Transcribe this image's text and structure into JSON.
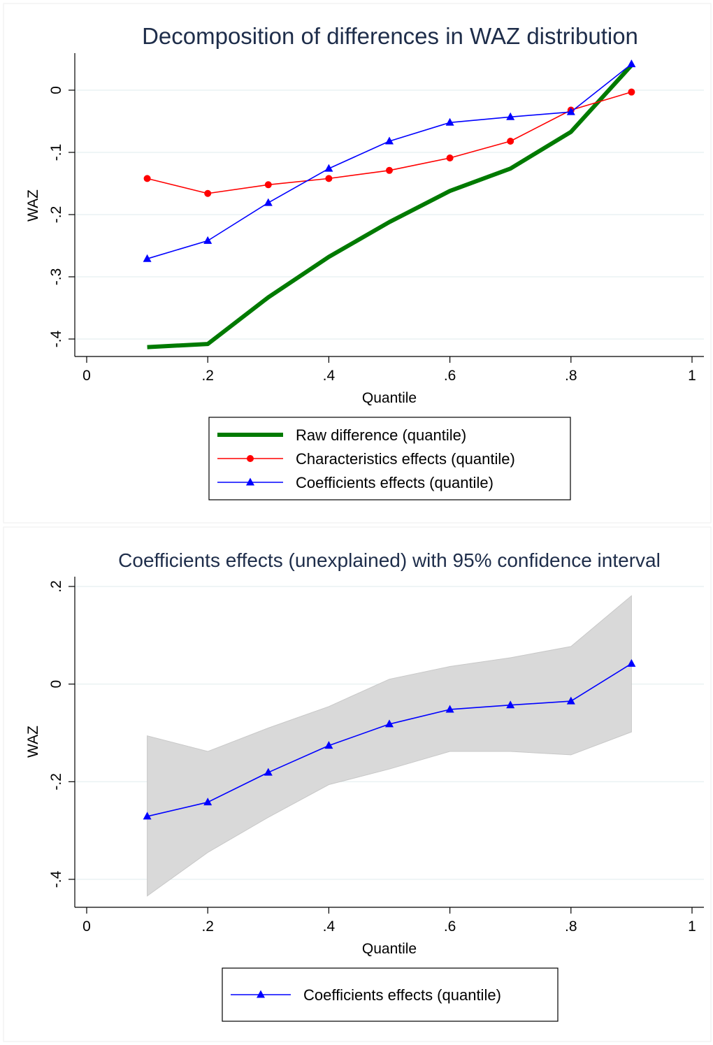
{
  "chart_data": [
    {
      "type": "line",
      "title": "Decomposition of differences in WAZ distribution",
      "xlabel": "Quantile",
      "ylabel": "WAZ",
      "xlim": [
        0,
        1
      ],
      "ylim": [
        -0.43,
        0.05
      ],
      "x_ticks": [
        0,
        0.2,
        0.4,
        0.6,
        0.8,
        1
      ],
      "x_tick_labels": [
        "0",
        ".2",
        ".4",
        ".6",
        ".8",
        "1"
      ],
      "y_ticks": [
        0,
        -0.1,
        -0.2,
        -0.3,
        -0.4
      ],
      "y_tick_labels": [
        "0",
        "-.1",
        "-.2",
        "-.3",
        "-.4"
      ],
      "grid": true,
      "legend_position": "bottom",
      "x": [
        0.1,
        0.2,
        0.3,
        0.4,
        0.5,
        0.6,
        0.7,
        0.8,
        0.9
      ],
      "series": [
        {
          "name": "Raw difference (quantile)",
          "color": "#007a00",
          "marker": "none",
          "values": [
            -0.413,
            -0.408,
            -0.333,
            -0.268,
            -0.212,
            -0.162,
            -0.126,
            -0.067,
            0.04
          ]
        },
        {
          "name": "Characteristics effects (quantile)",
          "color": "#ff0000",
          "marker": "circle",
          "values": [
            -0.142,
            -0.166,
            -0.152,
            -0.142,
            -0.129,
            -0.109,
            -0.082,
            -0.032,
            -0.003
          ]
        },
        {
          "name": "Coefficients effects (quantile)",
          "color": "#0000ff",
          "marker": "triangle",
          "values": [
            -0.271,
            -0.242,
            -0.181,
            -0.126,
            -0.082,
            -0.052,
            -0.043,
            -0.035,
            0.042
          ]
        }
      ]
    },
    {
      "type": "area",
      "title": "Coefficients effects (unexplained) with 95% confidence interval",
      "xlabel": "Quantile",
      "ylabel": "WAZ",
      "xlim": [
        0,
        1
      ],
      "ylim": [
        -0.44,
        0.215
      ],
      "x_ticks": [
        0,
        0.2,
        0.4,
        0.6,
        0.8,
        1
      ],
      "x_tick_labels": [
        "0",
        ".2",
        ".4",
        ".6",
        ".8",
        "1"
      ],
      "y_ticks": [
        0.2,
        0,
        -0.2,
        -0.4
      ],
      "y_tick_labels": [
        ".2",
        "0",
        "-.2",
        "-.4"
      ],
      "grid": true,
      "legend_position": "bottom",
      "x": [
        0.1,
        0.2,
        0.3,
        0.4,
        0.5,
        0.6,
        0.7,
        0.8,
        0.9
      ],
      "band": {
        "color": "#d9d9d9",
        "upper": [
          -0.106,
          -0.138,
          -0.09,
          -0.046,
          0.01,
          0.036,
          0.054,
          0.077,
          0.181
        ],
        "lower": [
          -0.434,
          -0.345,
          -0.273,
          -0.206,
          -0.174,
          -0.138,
          -0.138,
          -0.145,
          -0.098
        ]
      },
      "series": [
        {
          "name": "Coefficients effects (quantile)",
          "color": "#0000ff",
          "marker": "triangle",
          "values": [
            -0.271,
            -0.242,
            -0.181,
            -0.126,
            -0.082,
            -0.052,
            -0.043,
            -0.035,
            0.042
          ]
        }
      ]
    }
  ]
}
